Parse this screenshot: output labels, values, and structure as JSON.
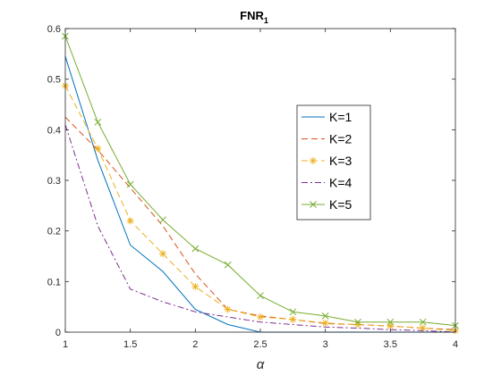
{
  "chart_data": {
    "type": "line",
    "title": "FNR",
    "title_subscript": "1",
    "xlabel": "α",
    "ylabel": "",
    "xlim": [
      1,
      4
    ],
    "ylim": [
      0,
      0.6
    ],
    "x_ticks": [
      "1",
      "1.5",
      "2",
      "2.5",
      "3",
      "3.5",
      "4"
    ],
    "y_ticks": [
      "0",
      "0.1",
      "0.2",
      "0.3",
      "0.4",
      "0.5",
      "0.6"
    ],
    "grid": false,
    "legend_position": "right-center",
    "x": [
      1,
      1.25,
      1.5,
      1.75,
      2,
      2.25,
      2.5,
      2.75,
      3,
      3.25,
      3.5,
      3.75,
      4
    ],
    "series": [
      {
        "name": "K=1",
        "color": "#0072BD",
        "line_style": "solid",
        "marker": "none",
        "values": [
          0.545,
          0.34,
          0.172,
          0.12,
          0.045,
          0.015,
          0.0,
          0.0,
          0.0,
          0.0,
          0.0,
          0.0,
          0.0
        ]
      },
      {
        "name": "K=2",
        "color": "#D95319",
        "line_style": "dashed",
        "marker": "none",
        "values": [
          0.425,
          0.36,
          0.285,
          0.21,
          0.115,
          0.045,
          0.032,
          0.025,
          0.017,
          0.015,
          0.012,
          0.008,
          0.005
        ]
      },
      {
        "name": "K=3",
        "color": "#EDB120",
        "line_style": "dashed",
        "marker": "asterisk",
        "values": [
          0.487,
          0.363,
          0.22,
          0.155,
          0.09,
          0.045,
          0.03,
          0.025,
          0.018,
          0.015,
          0.012,
          0.008,
          0.003
        ]
      },
      {
        "name": "K=4",
        "color": "#7E2F8E",
        "line_style": "dashdot",
        "marker": "none",
        "values": [
          0.41,
          0.21,
          0.085,
          0.06,
          0.04,
          0.03,
          0.02,
          0.015,
          0.01,
          0.008,
          0.005,
          0.003,
          0.0
        ]
      },
      {
        "name": "K=5",
        "color": "#77AC30",
        "line_style": "solid",
        "marker": "x",
        "values": [
          0.585,
          0.415,
          0.292,
          0.222,
          0.165,
          0.133,
          0.072,
          0.04,
          0.032,
          0.02,
          0.02,
          0.02,
          0.013
        ]
      }
    ]
  }
}
